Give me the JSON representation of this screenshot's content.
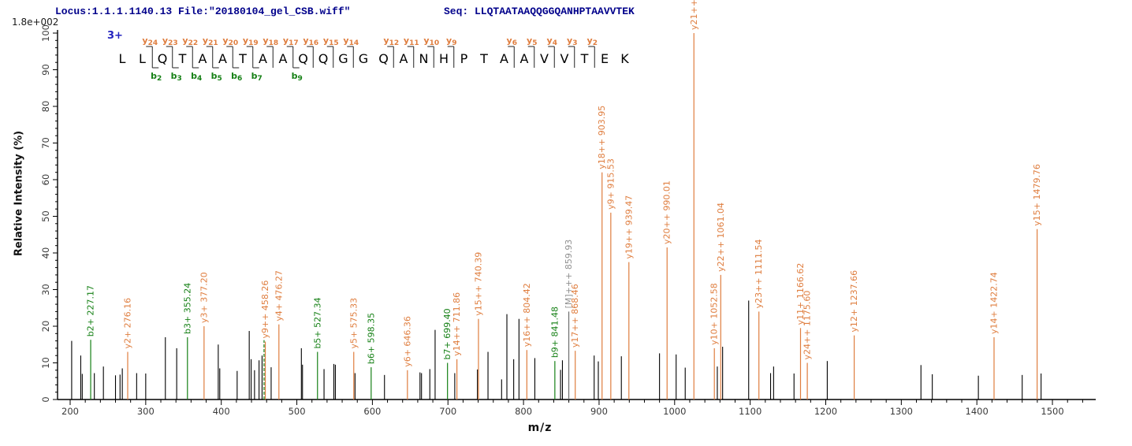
{
  "header": {
    "locus_file": "Locus:1.1.1.1140.13 File:\"20180104_gel_CSB.wiff\"",
    "seq_label": "Seq: LLQTAATAAQQGGQANHPTAAVVTEK",
    "max_intensity": "1.8e+002"
  },
  "ladder": {
    "charge": "3+",
    "residues": [
      "L",
      "L",
      "Q",
      "T",
      "A",
      "A",
      "T",
      "A",
      "A",
      "Q",
      "Q",
      "G",
      "G",
      "Q",
      "A",
      "N",
      "H",
      "P",
      "T",
      "A",
      "A",
      "V",
      "V",
      "T",
      "E",
      "K"
    ],
    "y_ions": [
      {
        "label": "y24",
        "after": 2
      },
      {
        "label": "y23",
        "after": 3
      },
      {
        "label": "y22",
        "after": 4
      },
      {
        "label": "y21",
        "after": 5
      },
      {
        "label": "y20",
        "after": 6
      },
      {
        "label": "y19",
        "after": 7
      },
      {
        "label": "y18",
        "after": 8
      },
      {
        "label": "y17",
        "after": 9
      },
      {
        "label": "y16",
        "after": 10
      },
      {
        "label": "y15",
        "after": 11
      },
      {
        "label": "y14",
        "after": 12
      },
      {
        "label": "y12",
        "after": 14
      },
      {
        "label": "y11",
        "after": 15
      },
      {
        "label": "y10",
        "after": 16
      },
      {
        "label": "y9",
        "after": 17
      },
      {
        "label": "y6",
        "after": 20
      },
      {
        "label": "y5",
        "after": 21
      },
      {
        "label": "y4",
        "after": 22
      },
      {
        "label": "y3",
        "after": 23
      },
      {
        "label": "y2",
        "after": 24
      }
    ],
    "b_ions": [
      {
        "label": "b2",
        "after": 2
      },
      {
        "label": "b3",
        "after": 3
      },
      {
        "label": "b4",
        "after": 4
      },
      {
        "label": "b5",
        "after": 5
      },
      {
        "label": "b6",
        "after": 6
      },
      {
        "label": "b7",
        "after": 7
      },
      {
        "label": "b9",
        "after": 9
      }
    ]
  },
  "chart_data": {
    "type": "bar",
    "subtype": "ms2-mass-spectrum",
    "title": "",
    "xlabel": "m/z",
    "ylabel": "Relative Intensity (%)",
    "xlim": [
      183,
      1557
    ],
    "ylim": [
      0,
      100
    ],
    "x_ticks_major": [
      200,
      300,
      400,
      500,
      600,
      700,
      800,
      900,
      1000,
      1100,
      1200,
      1300,
      1400,
      1500
    ],
    "x_tick_minor_step": 20,
    "y_ticks_major": [
      0,
      10,
      20,
      30,
      40,
      50,
      60,
      70,
      80,
      90,
      100
    ],
    "y_tick_minor_step": 2,
    "grid": false,
    "legend": false,
    "colors": {
      "y_ion": "#DF7D3E",
      "b_ion": "#158015",
      "precursor_line": "#6e6e6e",
      "precursor_label": "#909090",
      "peak": "#000000",
      "axis": "#000000",
      "tick_label": "#3a3a3a"
    },
    "annotated_peaks": [
      {
        "ion": "b2+",
        "mz": 227.17,
        "intensity": 16.3,
        "series": "b",
        "label": "b2+ 227.17"
      },
      {
        "ion": "y2+",
        "mz": 276.16,
        "intensity": 13,
        "series": "y",
        "label": "y2+ 276.16"
      },
      {
        "ion": "b3+",
        "mz": 355.24,
        "intensity": 17,
        "series": "b",
        "label": "b3+ 355.24"
      },
      {
        "ion": "y3+",
        "mz": 377.2,
        "intensity": 20,
        "series": "y",
        "label": "y3+ 377.20"
      },
      {
        "ion": "y9++",
        "mz": 458.26,
        "intensity": 15.8,
        "series": "y",
        "label": "y9++ 458.26"
      },
      {
        "ion": "y4+",
        "mz": 476.27,
        "intensity": 20.5,
        "series": "y",
        "label": "y4+ 476.27"
      },
      {
        "ion": "b5+",
        "mz": 527.34,
        "intensity": 13,
        "series": "b",
        "label": "b5+ 527.34"
      },
      {
        "ion": "y5+",
        "mz": 575.33,
        "intensity": 13,
        "series": "y",
        "label": "y5+ 575.33"
      },
      {
        "ion": "b6+",
        "mz": 598.35,
        "intensity": 8.8,
        "series": "b",
        "label": "b6+ 598.35"
      },
      {
        "ion": "y6+",
        "mz": 646.36,
        "intensity": 8,
        "series": "y",
        "label": "y6+ 646.36"
      },
      {
        "ion": "b7+",
        "mz": 699.4,
        "intensity": 10,
        "series": "b",
        "label": "b7+ 699.40"
      },
      {
        "ion": "y14++",
        "mz": 711.86,
        "intensity": 11,
        "series": "y",
        "label": "y14++ 711.86"
      },
      {
        "ion": "y15++",
        "mz": 740.39,
        "intensity": 22,
        "series": "y",
        "label": "y15++ 740.39"
      },
      {
        "ion": "y16++",
        "mz": 804.42,
        "intensity": 13.5,
        "series": "y",
        "label": "y16++ 804.42"
      },
      {
        "ion": "b9+",
        "mz": 841.48,
        "intensity": 10.5,
        "series": "b",
        "label": "b9+ 841.48"
      },
      {
        "ion": "[M]+++",
        "mz": 859.93,
        "intensity": 24,
        "series": "precursor",
        "label": "[M]+++ 859.93"
      },
      {
        "ion": "y17++",
        "mz": 868.46,
        "intensity": 13.3,
        "series": "y",
        "label": "y17++ 868.46"
      },
      {
        "ion": "y18++",
        "mz": 903.95,
        "intensity": 62,
        "series": "y",
        "label": "y18++ 903.95"
      },
      {
        "ion": "y9+",
        "mz": 915.53,
        "intensity": 51,
        "series": "y",
        "label": "y9+ 915.53"
      },
      {
        "ion": "y19++",
        "mz": 939.47,
        "intensity": 37.5,
        "series": "y",
        "label": "y19++ 939.47"
      },
      {
        "ion": "y20++",
        "mz": 990.01,
        "intensity": 41.5,
        "series": "y",
        "label": "y20++ 990.01"
      },
      {
        "ion": "y21++",
        "mz": 1025.51,
        "intensity": 100,
        "series": "y",
        "label": "y21++ 1025.51"
      },
      {
        "ion": "y10+",
        "mz": 1052.58,
        "intensity": 14,
        "series": "y",
        "label": "y10+ 1052.58"
      },
      {
        "ion": "y22++",
        "mz": 1061.04,
        "intensity": 34,
        "series": "y",
        "label": "y22++ 1061.04"
      },
      {
        "ion": "y23++",
        "mz": 1111.54,
        "intensity": 24,
        "series": "y",
        "label": "y23++ 1111.54"
      },
      {
        "ion": "y11+",
        "mz": 1166.62,
        "intensity": 19.5,
        "series": "y",
        "label": "y11+ 1166.62"
      },
      {
        "ion": "y24++",
        "mz": 1175.6,
        "intensity": 10,
        "series": "y",
        "label": "y24++ 1175.60"
      },
      {
        "ion": "y12+",
        "mz": 1237.66,
        "intensity": 17.5,
        "series": "y",
        "label": "y12+ 1237.66"
      },
      {
        "ion": "y14+",
        "mz": 1422.74,
        "intensity": 17,
        "series": "y",
        "label": "y14+ 1422.74"
      },
      {
        "ion": "y15+",
        "mz": 1479.76,
        "intensity": 46.5,
        "series": "y",
        "label": "y15+ 1479.76"
      }
    ],
    "overlap_peaks": [
      {
        "mz": 456.6,
        "intensity": 16.2,
        "series": "b",
        "dashed": true
      }
    ],
    "unannotated_peaks": [
      [
        202,
        16
      ],
      [
        214,
        12
      ],
      [
        216,
        7
      ],
      [
        232,
        7.2
      ],
      [
        244,
        9
      ],
      [
        260,
        6.6
      ],
      [
        266,
        6.8
      ],
      [
        269,
        8.5
      ],
      [
        288,
        7.2
      ],
      [
        300,
        7.1
      ],
      [
        326,
        17
      ],
      [
        341,
        14
      ],
      [
        396,
        15
      ],
      [
        398,
        8.5
      ],
      [
        421,
        7.8
      ],
      [
        437,
        18.7
      ],
      [
        439.5,
        11
      ],
      [
        444,
        8
      ],
      [
        450,
        10.7
      ],
      [
        454,
        12
      ],
      [
        466,
        8.8
      ],
      [
        506,
        14
      ],
      [
        507.5,
        9.5
      ],
      [
        536,
        8.3
      ],
      [
        549,
        9.7
      ],
      [
        551,
        9.5
      ],
      [
        577,
        7.2
      ],
      [
        616,
        6.7
      ],
      [
        663,
        7.4
      ],
      [
        665,
        7.2
      ],
      [
        676,
        8.3
      ],
      [
        683,
        19
      ],
      [
        709,
        7.2
      ],
      [
        739,
        8.2
      ],
      [
        753,
        13
      ],
      [
        771,
        5.5
      ],
      [
        778,
        23.3
      ],
      [
        787,
        11
      ],
      [
        794,
        22
      ],
      [
        815,
        11.3
      ],
      [
        849,
        8.1
      ],
      [
        851.5,
        10.7
      ],
      [
        893.5,
        12
      ],
      [
        899,
        10.4
      ],
      [
        929.5,
        11.8
      ],
      [
        980,
        12.6
      ],
      [
        1002,
        12.3
      ],
      [
        1014,
        8.7
      ],
      [
        1056.5,
        9
      ],
      [
        1063.5,
        14.4
      ],
      [
        1098,
        27
      ],
      [
        1127,
        7.2
      ],
      [
        1131,
        9
      ],
      [
        1158,
        7.1
      ],
      [
        1202,
        10.5
      ],
      [
        1326,
        9.4
      ],
      [
        1341,
        6.9
      ],
      [
        1402,
        6.5
      ],
      [
        1460,
        6.7
      ],
      [
        1485,
        7.1
      ]
    ]
  }
}
